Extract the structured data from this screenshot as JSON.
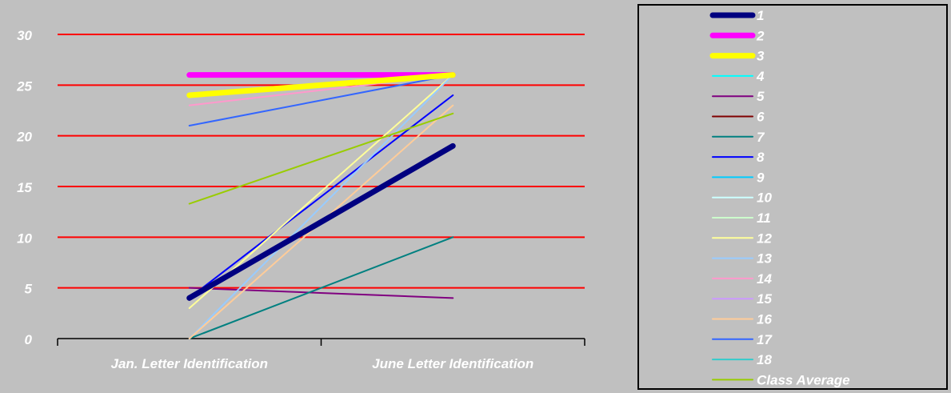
{
  "chart_data": {
    "type": "line",
    "title": "",
    "xlabel": "",
    "ylabel": "",
    "categories": [
      "Jan. Letter Identification",
      "June Letter Identification"
    ],
    "ylim": [
      0,
      30
    ],
    "yticks": [
      "0",
      "5",
      "10",
      "15",
      "20",
      "25",
      "30"
    ],
    "grid": true,
    "grid_color": "#ff0000",
    "background": "#c0c0c0",
    "legend_position": "right",
    "series": [
      {
        "name": "1",
        "values": [
          4,
          19
        ],
        "color": "#000080",
        "weight": "heavy"
      },
      {
        "name": "2",
        "values": [
          26,
          26
        ],
        "color": "#ff00ff",
        "weight": "heavy"
      },
      {
        "name": "3",
        "values": [
          24,
          26
        ],
        "color": "#ffff00",
        "weight": "heavy"
      },
      {
        "name": "4",
        "values": [
          26,
          26
        ],
        "color": "#00ffff",
        "weight": "thin"
      },
      {
        "name": "5",
        "values": [
          5,
          4
        ],
        "color": "#800080",
        "weight": "thin"
      },
      {
        "name": "6",
        "values": [
          26,
          26
        ],
        "color": "#800000",
        "weight": "thin"
      },
      {
        "name": "7",
        "values": [
          0,
          10
        ],
        "color": "#008080",
        "weight": "thin"
      },
      {
        "name": "8",
        "values": [
          4,
          24
        ],
        "color": "#0000ff",
        "weight": "thin"
      },
      {
        "name": "9",
        "values": [
          26,
          26
        ],
        "color": "#00ccff",
        "weight": "thin"
      },
      {
        "name": "10",
        "values": [
          26,
          26
        ],
        "color": "#ccffff",
        "weight": "thin"
      },
      {
        "name": "11",
        "values": [
          26,
          26
        ],
        "color": "#ccffcc",
        "weight": "thin"
      },
      {
        "name": "12",
        "values": [
          3,
          26
        ],
        "color": "#ffff99",
        "weight": "thin"
      },
      {
        "name": "13",
        "values": [
          0,
          26
        ],
        "color": "#99ccff",
        "weight": "thin"
      },
      {
        "name": "14",
        "values": [
          23,
          26
        ],
        "color": "#ff99cc",
        "weight": "thin"
      },
      {
        "name": "15",
        "values": [
          26,
          26
        ],
        "color": "#cc99ff",
        "weight": "thin"
      },
      {
        "name": "16",
        "values": [
          0,
          23
        ],
        "color": "#ffcc99",
        "weight": "thin"
      },
      {
        "name": "17",
        "values": [
          21,
          26
        ],
        "color": "#3366ff",
        "weight": "thin"
      },
      {
        "name": "18",
        "values": [
          26,
          26
        ],
        "color": "#33cccc",
        "weight": "thin"
      },
      {
        "name": "Class Average",
        "values": [
          13.3,
          22.2
        ],
        "color": "#99cc00",
        "weight": "thin"
      }
    ]
  }
}
